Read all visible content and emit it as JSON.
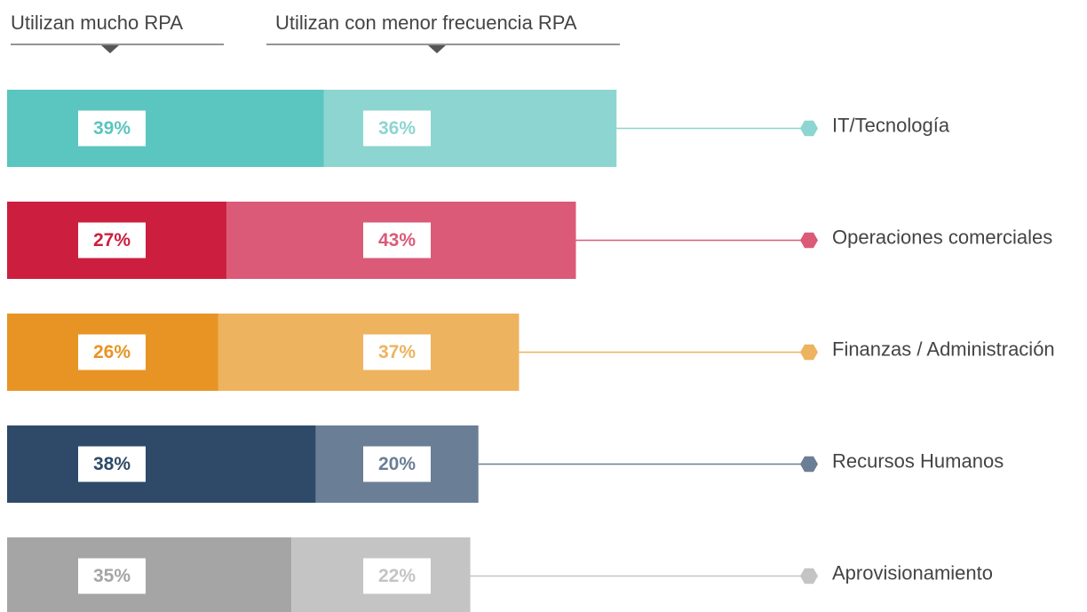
{
  "chart_data": {
    "type": "stacked-bar-horizontal",
    "categories": [
      "IT/Tecnología",
      "Operaciones comerciales",
      "Finanzas / Administración",
      "Recursos Humanos",
      "Aprovisionamiento"
    ],
    "series": [
      {
        "name": "Utilizan mucho RPA",
        "colors": [
          "#5bc5bf",
          "#cc1f3f",
          "#e89424",
          "#2e4a68",
          "#a5a5a5"
        ],
        "values": [
          39,
          27,
          26,
          38,
          35
        ],
        "value_labels": [
          "39%",
          "27%",
          "26%",
          "38%",
          "35%"
        ]
      },
      {
        "name": "Utilizan con menor frecuencia RPA",
        "colors": [
          "#8dd5d0",
          "#db5a78",
          "#edb35f",
          "#6a7e96",
          "#c4c4c4"
        ],
        "values": [
          36,
          43,
          37,
          20,
          22
        ],
        "value_labels": [
          "36%",
          "43%",
          "37%",
          "20%",
          "22%"
        ]
      }
    ]
  }
}
